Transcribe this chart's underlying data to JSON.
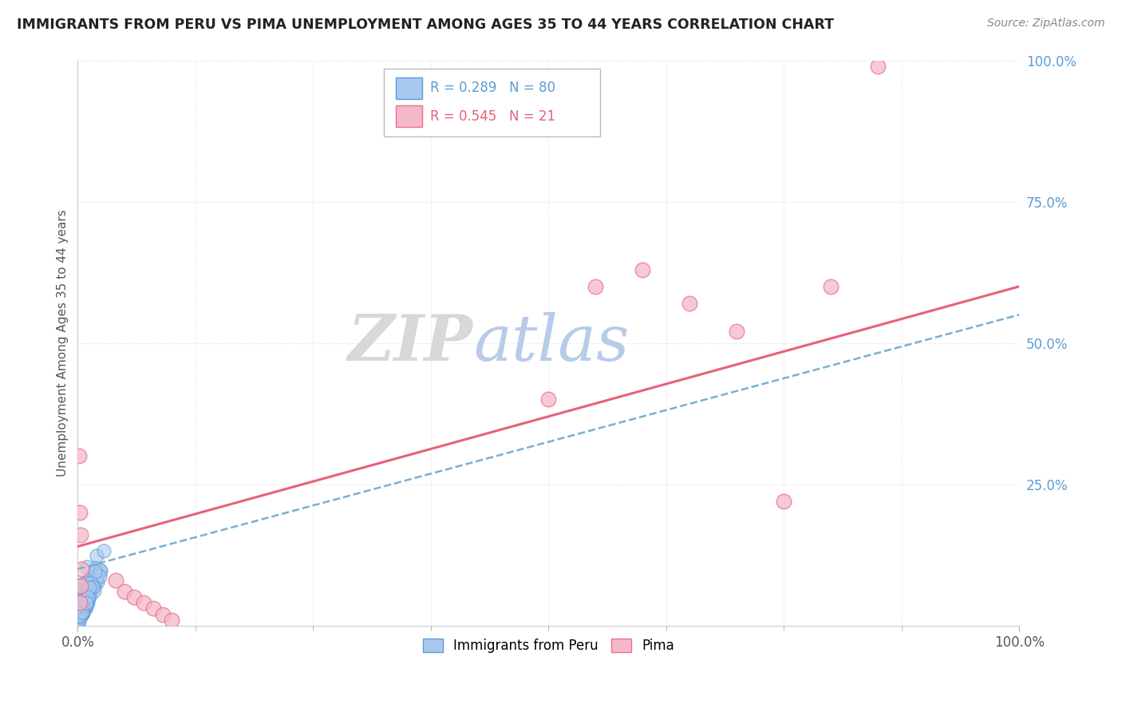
{
  "title": "IMMIGRANTS FROM PERU VS PIMA UNEMPLOYMENT AMONG AGES 35 TO 44 YEARS CORRELATION CHART",
  "source": "Source: ZipAtlas.com",
  "ylabel": "Unemployment Among Ages 35 to 44 years",
  "xlim": [
    0,
    1.0
  ],
  "ylim": [
    0,
    1.0
  ],
  "color_blue": "#A8C8F0",
  "color_blue_edge": "#5B9BD5",
  "color_pink": "#F5B8C8",
  "color_pink_edge": "#E87090",
  "color_pink_line": "#E8607A",
  "color_blue_line": "#7BAFD4",
  "watermark_zip_color": "#D8D8D8",
  "watermark_atlas_color": "#B8CCE8",
  "background_color": "#FFFFFF",
  "grid_color": "#DDDDDD",
  "ytick_color": "#5B9BD5",
  "trend_pink_y0": 0.14,
  "trend_pink_y1": 0.6,
  "trend_blue_y0": 0.1,
  "trend_blue_y1": 0.55,
  "pink_points_x": [
    0.001,
    0.002,
    0.003,
    0.004,
    0.003,
    0.002,
    0.5,
    0.55,
    0.6,
    0.65,
    0.7,
    0.75,
    0.8,
    0.85,
    0.04,
    0.05,
    0.06,
    0.07,
    0.08,
    0.09,
    0.1
  ],
  "pink_points_y": [
    0.3,
    0.2,
    0.16,
    0.1,
    0.07,
    0.04,
    0.4,
    0.6,
    0.63,
    0.57,
    0.52,
    0.22,
    0.6,
    0.99,
    0.08,
    0.06,
    0.05,
    0.04,
    0.03,
    0.02,
    0.01
  ]
}
